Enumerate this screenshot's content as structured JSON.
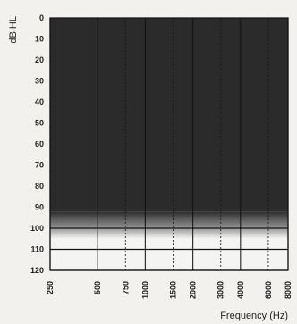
{
  "chart_data": {
    "type": "heatmap",
    "title": "",
    "xlabel": "Frequency (Hz)",
    "ylabel": "dB HL",
    "x_tick_labels": [
      "250",
      "500",
      "750",
      "1000",
      "1500",
      "2000",
      "3000",
      "4000",
      "6000",
      "8000"
    ],
    "x_frequencies_hz": [
      250,
      500,
      750,
      1000,
      1500,
      2000,
      3000,
      4000,
      6000,
      8000
    ],
    "y_tick_labels": [
      "0",
      "10",
      "20",
      "30",
      "40",
      "50",
      "60",
      "70",
      "80",
      "90",
      "100",
      "110",
      "120"
    ],
    "ylim": [
      0,
      120
    ],
    "y_inverted": true,
    "dark_region_db": [
      0,
      92
    ],
    "fade_region_db": [
      92,
      105
    ],
    "light_region_db": [
      105,
      120
    ],
    "solid_gridlines_hz": [
      250,
      500,
      1000,
      2000,
      4000,
      8000
    ],
    "dashed_gridlines_hz": [
      750,
      1500,
      3000,
      6000
    ],
    "horizontal_lines_db": [
      100,
      110,
      120
    ],
    "grid": true
  },
  "colors": {
    "dark_fill": "#2b2b2b",
    "light_fill": "#f4f4f2",
    "line": "#111111"
  }
}
